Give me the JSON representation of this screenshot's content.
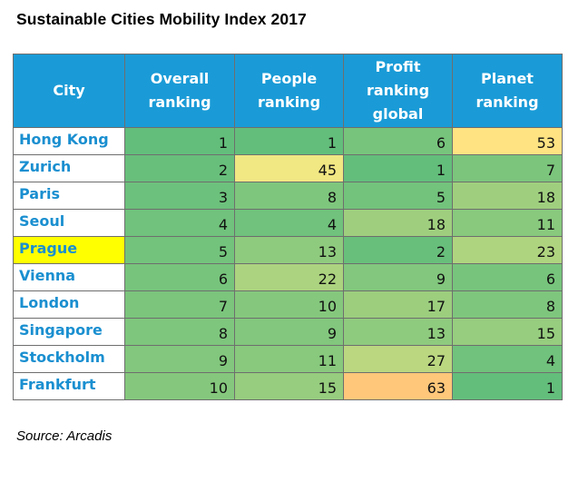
{
  "title": "Sustainable Cities Mobility Index 2017",
  "headers": [
    "City",
    "Overall ranking",
    "People ranking",
    "Profit ranking global",
    "Planet ranking"
  ],
  "header_lines": [
    [
      "City"
    ],
    [
      "Overall",
      "ranking"
    ],
    [
      "People",
      "ranking"
    ],
    [
      "Profit",
      "ranking",
      "global"
    ],
    [
      "Planet",
      "ranking"
    ]
  ],
  "rows": [
    {
      "city": "Hong Kong",
      "highlight": false,
      "overall": 1,
      "people": 1,
      "profit": 6,
      "planet": 53
    },
    {
      "city": "Zurich",
      "highlight": false,
      "overall": 2,
      "people": 45,
      "profit": 1,
      "planet": 7
    },
    {
      "city": "Paris",
      "highlight": false,
      "overall": 3,
      "people": 8,
      "profit": 5,
      "planet": 18
    },
    {
      "city": "Seoul",
      "highlight": false,
      "overall": 4,
      "people": 4,
      "profit": 18,
      "planet": 11
    },
    {
      "city": "Prague",
      "highlight": true,
      "overall": 5,
      "people": 13,
      "profit": 2,
      "planet": 23
    },
    {
      "city": "Vienna",
      "highlight": false,
      "overall": 6,
      "people": 22,
      "profit": 9,
      "planet": 6
    },
    {
      "city": "London",
      "highlight": false,
      "overall": 7,
      "people": 10,
      "profit": 17,
      "planet": 8
    },
    {
      "city": "Singapore",
      "highlight": false,
      "overall": 8,
      "people": 9,
      "profit": 13,
      "planet": 15
    },
    {
      "city": "Stockholm",
      "highlight": false,
      "overall": 9,
      "people": 11,
      "profit": 27,
      "planet": 4
    },
    {
      "city": "Frankfurt",
      "highlight": false,
      "overall": 10,
      "people": 15,
      "profit": 63,
      "planet": 1
    }
  ],
  "colors": {
    "header_bg": "#1a9bd7",
    "city_text": "#1a8fd0",
    "highlight": "#ffff00",
    "scale_low": "#63be7b",
    "scale_mid": "#ffeb84",
    "scale_high": "#ffc77a"
  },
  "source": "Source: Arcadis"
}
